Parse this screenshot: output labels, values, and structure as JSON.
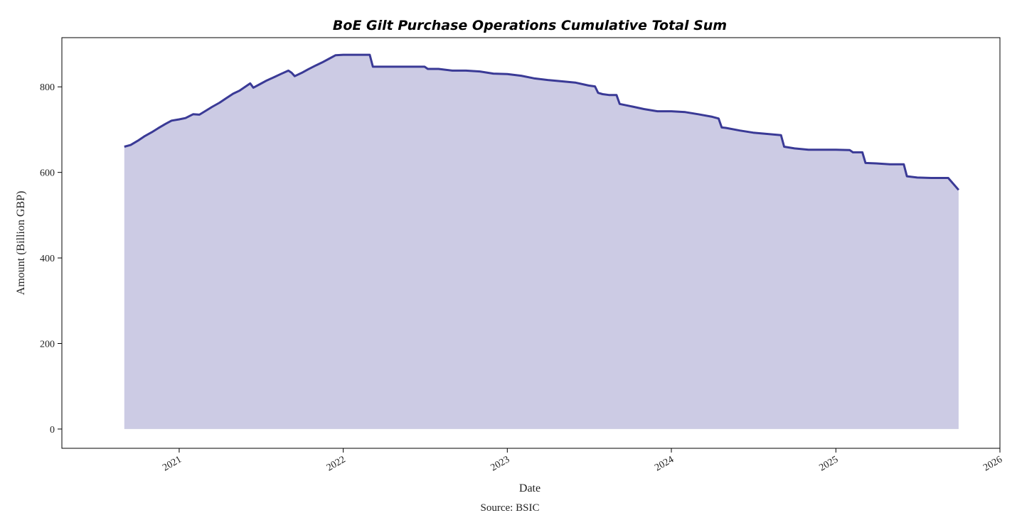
{
  "chart_data": {
    "type": "area",
    "title": "BoE Gilt Purchase Operations Cumulative Total Sum",
    "xlabel": "Date",
    "ylabel": "Amount (Billion GBP)",
    "source": "Source: BSIC",
    "x_ticks": [
      "2021",
      "2022",
      "2023",
      "2024",
      "2025",
      "2026"
    ],
    "y_ticks": [
      0,
      200,
      400,
      600,
      800
    ],
    "xlim": [
      "2020-04-15",
      "2026-01-01"
    ],
    "ylim": [
      -45,
      915
    ],
    "grid": false,
    "legend": "none",
    "colors": {
      "line": "#3a3a96",
      "fill": "#cccbe4"
    },
    "series": [
      {
        "x": [
          "2020-09-01",
          "2020-09-15",
          "2020-10-01",
          "2020-10-15",
          "2020-11-01",
          "2020-11-15",
          "2020-12-01",
          "2020-12-15",
          "2021-01-01",
          "2021-01-15",
          "2021-02-01",
          "2021-02-15",
          "2021-03-01",
          "2021-03-15",
          "2021-04-01",
          "2021-04-15",
          "2021-05-01",
          "2021-05-15",
          "2021-06-01",
          "2021-06-08",
          "2021-06-15",
          "2021-07-01",
          "2021-07-15",
          "2021-08-01",
          "2021-08-15",
          "2021-09-01",
          "2021-09-08",
          "2021-09-15",
          "2021-10-01",
          "2021-10-15",
          "2021-11-01",
          "2021-11-15",
          "2021-12-01",
          "2021-12-15",
          "2022-01-01",
          "2022-02-01",
          "2022-03-01",
          "2022-03-08",
          "2022-04-01",
          "2022-05-01",
          "2022-06-01",
          "2022-07-01",
          "2022-07-08",
          "2022-08-01",
          "2022-09-01",
          "2022-09-08",
          "2022-10-01",
          "2022-11-01",
          "2022-12-01",
          "2023-01-01",
          "2023-02-01",
          "2023-03-01",
          "2023-04-01",
          "2023-05-01",
          "2023-06-01",
          "2023-07-01",
          "2023-07-15",
          "2023-07-22",
          "2023-08-01",
          "2023-08-15",
          "2023-09-01",
          "2023-09-08",
          "2023-10-01",
          "2023-11-01",
          "2023-12-01",
          "2024-01-01",
          "2024-02-01",
          "2024-03-01",
          "2024-04-01",
          "2024-04-15",
          "2024-04-22",
          "2024-05-01",
          "2024-06-01",
          "2024-07-01",
          "2024-08-01",
          "2024-09-01",
          "2024-09-08",
          "2024-10-01",
          "2024-11-01",
          "2024-12-01",
          "2025-01-01",
          "2025-02-01",
          "2025-02-08",
          "2025-03-01",
          "2025-03-08",
          "2025-04-01",
          "2025-05-01",
          "2025-06-01",
          "2025-06-08",
          "2025-07-01",
          "2025-08-01",
          "2025-09-01",
          "2025-09-08",
          "2025-10-01"
        ],
        "values": [
          660,
          664,
          674,
          684,
          694,
          703,
          713,
          721,
          724,
          727,
          736,
          735,
          744,
          753,
          763,
          773,
          784,
          791,
          803,
          808,
          798,
          807,
          815,
          823,
          830,
          838,
          833,
          825,
          833,
          841,
          850,
          857,
          866,
          874,
          875,
          875,
          875,
          847,
          847,
          847,
          847,
          847,
          842,
          842,
          838,
          838,
          838,
          836,
          831,
          830,
          826,
          820,
          816,
          813,
          810,
          803,
          801,
          786,
          783,
          781,
          781,
          760,
          755,
          748,
          743,
          743,
          741,
          736,
          730,
          726,
          705,
          704,
          698,
          693,
          690,
          687,
          660,
          656,
          653,
          653,
          653,
          652,
          647,
          647,
          622,
          621,
          619,
          619,
          591,
          588,
          587,
          587,
          587,
          559
        ]
      }
    ]
  }
}
